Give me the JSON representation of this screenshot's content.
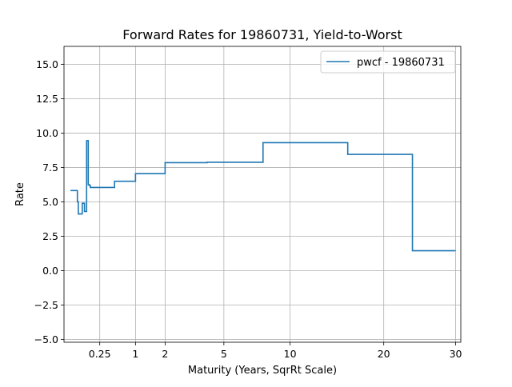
{
  "chart_data": {
    "type": "line",
    "title": "Forward Rates for 19860731, Yield-to-Worst",
    "xlabel": "Maturity (Years, SqrRt Scale)",
    "ylabel": "Rate",
    "x_scale": "sqrt",
    "xlim": [
      0,
      30.8
    ],
    "ylim": [
      -5.2,
      16.3
    ],
    "x_ticks": [
      0.25,
      1,
      2,
      5,
      10,
      20,
      30
    ],
    "x_tick_labels": [
      "0.25",
      "1",
      "2",
      "5",
      "10",
      "20",
      "30"
    ],
    "y_ticks": [
      -5.0,
      -2.5,
      0.0,
      2.5,
      5.0,
      7.5,
      10.0,
      12.5,
      15.0
    ],
    "y_tick_labels": [
      "−5.0",
      "−2.5",
      "0.0",
      "2.5",
      "5.0",
      "7.5",
      "10.0",
      "12.5",
      "15.0"
    ],
    "grid": true,
    "legend_position": "top-right",
    "series": [
      {
        "name": "pwcf - 19860731",
        "color": "#1f77b4",
        "x": [
          0.0083,
          0.035,
          0.035,
          0.04,
          0.04,
          0.045,
          0.045,
          0.065,
          0.065,
          0.082,
          0.082,
          0.1,
          0.1,
          0.115,
          0.115,
          0.125,
          0.125,
          0.135,
          0.135,
          0.17,
          0.17,
          0.5,
          0.5,
          1.0,
          1.0,
          2.0,
          2.0,
          4.0,
          4.0,
          7.75,
          7.75,
          15.75,
          15.75,
          23.75,
          23.75,
          30.0
        ],
        "y": [
          5.82,
          5.82,
          5.0,
          5.0,
          4.12,
          4.12,
          4.12,
          4.12,
          4.9,
          4.9,
          4.3,
          4.3,
          9.45,
          9.45,
          6.25,
          6.25,
          6.2,
          6.2,
          6.05,
          6.05,
          6.05,
          6.05,
          6.5,
          6.5,
          7.05,
          7.05,
          7.85,
          7.85,
          7.88,
          7.88,
          9.3,
          9.3,
          8.45,
          8.45,
          1.45,
          1.45
        ]
      }
    ]
  }
}
